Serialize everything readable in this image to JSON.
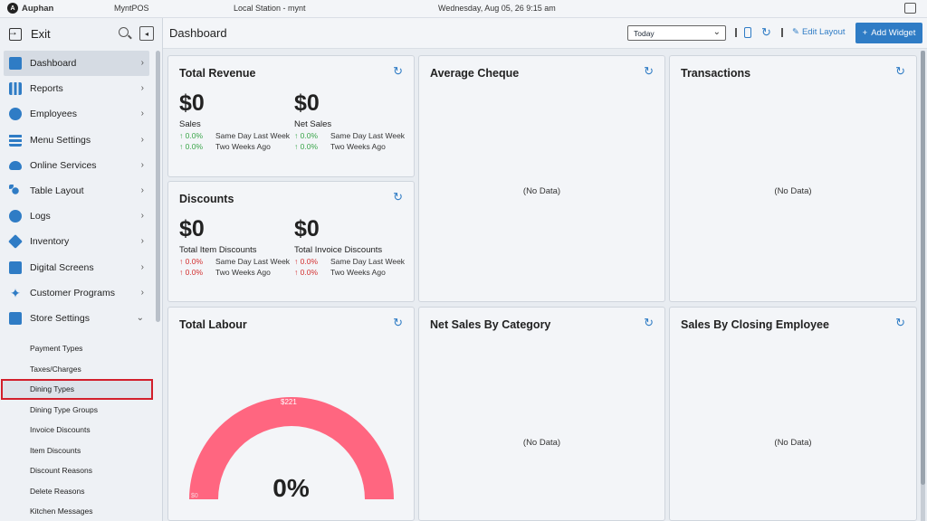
{
  "topbar": {
    "brand": "Auphan",
    "app_name": "MyntPOS",
    "station": "Local Station - mynt",
    "datetime": "Wednesday, Aug 05, 26 9:15 am"
  },
  "sidebar": {
    "exit_label": "Exit",
    "items": [
      {
        "label": "Dashboard",
        "icon": "dashboard-icon",
        "color": "#2f7cc5"
      },
      {
        "label": "Reports",
        "icon": "reports-icon",
        "color": "#2f7cc5"
      },
      {
        "label": "Employees",
        "icon": "employees-icon",
        "color": "#2f7cc5"
      },
      {
        "label": "Menu Settings",
        "icon": "menu-grid-icon",
        "color": "#2f7cc5"
      },
      {
        "label": "Online Services",
        "icon": "cloud-icon",
        "color": "#2f7cc5"
      },
      {
        "label": "Table Layout",
        "icon": "table-layout-icon",
        "color": "#2f7cc5"
      },
      {
        "label": "Logs",
        "icon": "logs-search-icon",
        "color": "#2f7cc5"
      },
      {
        "label": "Inventory",
        "icon": "inventory-box-icon",
        "color": "#2f7cc5"
      },
      {
        "label": "Digital Screens",
        "icon": "image-icon",
        "color": "#2f7cc5"
      },
      {
        "label": "Customer Programs",
        "icon": "person-icon",
        "color": "#2f7cc5"
      },
      {
        "label": "Store Settings",
        "icon": "store-icon",
        "color": "#2f7cc5"
      }
    ],
    "sub_items": [
      "Payment Types",
      "Taxes/Charges",
      "Dining Types",
      "Dining Type Groups",
      "Invoice Discounts",
      "Item Discounts",
      "Discount Reasons",
      "Delete Reasons",
      "Kitchen Messages"
    ]
  },
  "header": {
    "title": "Dashboard",
    "period": "Today",
    "edit_layout": "Edit Layout",
    "add_widget": "Add Widget"
  },
  "widgets": {
    "total_revenue": {
      "title": "Total Revenue",
      "metrics": [
        {
          "value": "$0",
          "label": "Sales",
          "same_day": "0.0%",
          "two_weeks": "0.0%"
        },
        {
          "value": "$0",
          "label": "Net Sales",
          "same_day": "0.0%",
          "two_weeks": "0.0%"
        }
      ],
      "same_day_label": "Same Day Last Week",
      "two_weeks_label": "Two Weeks Ago"
    },
    "discounts": {
      "title": "Discounts",
      "metrics": [
        {
          "value": "$0",
          "label": "Total Item Discounts",
          "same_day": "0.0%",
          "two_weeks": "0.0%"
        },
        {
          "value": "$0",
          "label": "Total Invoice Discounts",
          "same_day": "0.0%",
          "two_weeks": "0.0%"
        }
      ],
      "same_day_label": "Same Day Last Week",
      "two_weeks_label": "Two Weeks Ago"
    },
    "average_cheque": {
      "title": "Average Cheque",
      "empty": "(No Data)"
    },
    "transactions": {
      "title": "Transactions",
      "empty": "(No Data)"
    },
    "total_labour": {
      "title": "Total Labour",
      "gauge_value": "0%",
      "gauge_max": "$221",
      "gauge_min": "$0",
      "gauge_color": "#ff6680"
    },
    "net_sales_by_category": {
      "title": "Net Sales By Category",
      "empty": "(No Data)"
    },
    "sales_by_closing_employee": {
      "title": "Sales By Closing Employee",
      "empty": "(No Data)"
    }
  },
  "colors": {
    "accent": "#2f7cc5",
    "up": "#3aa54a",
    "down": "#d32f2f",
    "highlight": "#d21f2b"
  }
}
